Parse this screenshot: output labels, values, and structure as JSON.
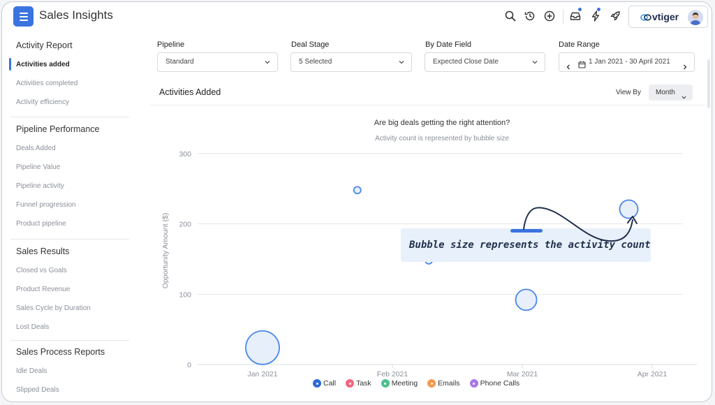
{
  "app": {
    "title": "Sales Insights",
    "brand": "vtiger"
  },
  "header_icons": [
    "search-icon",
    "history-icon",
    "add-icon",
    "inbox-icon",
    "lightning-icon",
    "rocket-icon"
  ],
  "sidebar": {
    "groups": [
      {
        "title": "Activity Report",
        "items": [
          "Activities added",
          "Activities completed",
          "Activity efficiency"
        ]
      },
      {
        "title": "Pipeline Performance",
        "items": [
          "Deals Added",
          "Pipeline Value",
          "Pipeline activity",
          "Funnel progression",
          "Product pipeline"
        ]
      },
      {
        "title": "Sales Results",
        "items": [
          "Closed vs Goals",
          "Product Revenue",
          "Sales Cycle by Duration",
          "Lost Deals"
        ]
      },
      {
        "title": "Sales Process Reports",
        "items": [
          "Idle Deals",
          "Slipped Deals"
        ]
      }
    ],
    "active_item": "Activities added"
  },
  "filters": {
    "pipeline": {
      "label": "Pipeline",
      "value": "Standard"
    },
    "deal_stage": {
      "label": "Deal Stage",
      "value": "5 Selected"
    },
    "date_field": {
      "label": "By Date Field",
      "value": "Expected Close Date"
    },
    "date_range": {
      "label": "Date Range",
      "value": "1 Jan 2021 - 30 April 2021"
    }
  },
  "card": {
    "title": "Activities Added",
    "view_by_label": "View By",
    "view_by_value": "Month"
  },
  "chart_data": {
    "type": "scatter",
    "title": "Are big deals getting the right attention?",
    "subtitle": "Activity count is represented by bubble size",
    "ylabel": "Opportunity Amount ($)",
    "xlabel": "",
    "ylim": [
      0,
      300
    ],
    "yticks": [
      0,
      100,
      200,
      300
    ],
    "categories": [
      "Jan 2021",
      "Feb 2021",
      "Mar 2021",
      "Apr 2021"
    ],
    "points": [
      {
        "x": 0.0,
        "y": 24,
        "size": 24
      },
      {
        "x": 0.73,
        "y": 248,
        "size": 5
      },
      {
        "x": 1.28,
        "y": 148,
        "size": 5
      },
      {
        "x": 2.03,
        "y": 92,
        "size": 15
      },
      {
        "x": 2.82,
        "y": 221,
        "size": 13
      }
    ],
    "grid": true,
    "legend": [
      "Call",
      "Task",
      "Meeting",
      "Emails",
      "Phone Calls"
    ],
    "legend_colors": [
      "#2d6ad8",
      "#f2677f",
      "#4cc08f",
      "#f59a4d",
      "#a878e8"
    ],
    "legend_position": "bottom"
  },
  "annotation": {
    "text": "Bubble size represents the activity count"
  }
}
